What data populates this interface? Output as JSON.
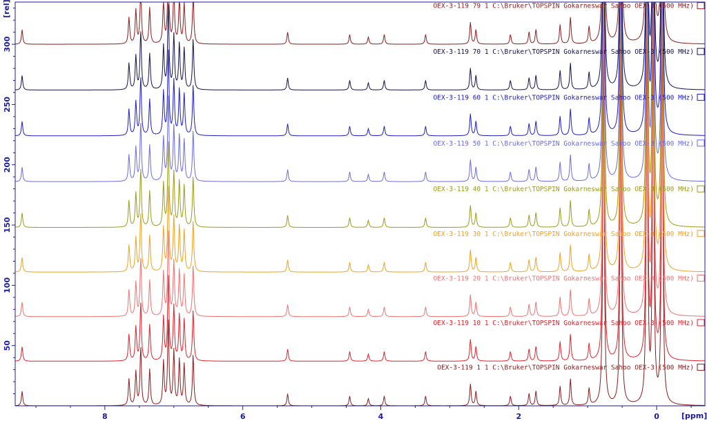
{
  "chart_data": {
    "type": "line",
    "title": "",
    "xlabel": "[ppm]",
    "ylabel": "[rel]",
    "xlim": [
      9.3,
      -0.7
    ],
    "ylim": [
      0,
      335
    ],
    "x_ticks": [
      8,
      6,
      4,
      2,
      0
    ],
    "y_ticks": [
      50,
      100,
      150,
      200,
      250,
      300
    ],
    "grid": false,
    "legend": "right, one label per spectrum",
    "series": [
      {
        "name": "OEX-3-119  1  1  C:\\Bruker\\TOPSPIN  Gokarneswar Sahoo OEX-3  (500 MHz)",
        "offset": 0,
        "color": "#8b1a1a"
      },
      {
        "name": "OEX-3-119  10  1  C:\\Bruker\\TOPSPIN  Gokarneswar Sahoo OEX-3  (500 MHz)",
        "offset": 37,
        "color": "#e0202a"
      },
      {
        "name": "OEX-3-119  20  1  C:\\Bruker\\TOPSPIN  Gokarneswar Sahoo OEX-3  (500 MHz)",
        "offset": 74,
        "color": "#f07070"
      },
      {
        "name": "OEX-3-119  30  1  C:\\Bruker\\TOPSPIN  Gokarneswar Sahoo OEX-3  (500 MHz)",
        "offset": 111,
        "color": "#f0a020"
      },
      {
        "name": "OEX-3-119  40  1  C:\\Bruker\\TOPSPIN  Gokarneswar Sahoo OEX-3  (500 MHz)",
        "offset": 148,
        "color": "#9a9a1a"
      },
      {
        "name": "OEX-3-119  50  1  C:\\Bruker\\TOPSPIN  Gokarneswar Sahoo OEX-3  (500 MHz)",
        "offset": 186,
        "color": "#6a6ae0"
      },
      {
        "name": "OEX-3-119  60  1  C:\\Bruker\\TOPSPIN  Gokarneswar Sahoo OEX-3  (500 MHz)",
        "offset": 224,
        "color": "#1a1acc"
      },
      {
        "name": "OEX-3-119  70  1  C:\\Bruker\\TOPSPIN  Gokarneswar Sahoo OEX-3  (500 MHz)",
        "offset": 262,
        "color": "#10104a"
      },
      {
        "name": "OEX-3-119  79  1  C:\\Bruker\\TOPSPIN  Gokarneswar Sahoo OEX-3  (500 MHz)",
        "offset": 300,
        "color": "#8b1a1a"
      }
    ],
    "peaks": [
      {
        "ppm": 9.2,
        "height": 12
      },
      {
        "ppm": 7.65,
        "height": 22
      },
      {
        "ppm": 7.55,
        "height": 28
      },
      {
        "ppm": 7.48,
        "height": 48
      },
      {
        "ppm": 7.35,
        "height": 30
      },
      {
        "ppm": 7.15,
        "height": 36
      },
      {
        "ppm": 7.08,
        "height": 70
      },
      {
        "ppm": 7.0,
        "height": 45
      },
      {
        "ppm": 6.92,
        "height": 38
      },
      {
        "ppm": 6.85,
        "height": 34
      },
      {
        "ppm": 6.72,
        "height": 42
      },
      {
        "ppm": 5.35,
        "height": 10
      },
      {
        "ppm": 4.45,
        "height": 8
      },
      {
        "ppm": 4.18,
        "height": 6
      },
      {
        "ppm": 3.95,
        "height": 8
      },
      {
        "ppm": 3.35,
        "height": 8
      },
      {
        "ppm": 2.7,
        "height": 18
      },
      {
        "ppm": 2.62,
        "height": 12
      },
      {
        "ppm": 2.12,
        "height": 8
      },
      {
        "ppm": 1.85,
        "height": 10
      },
      {
        "ppm": 1.75,
        "height": 12
      },
      {
        "ppm": 1.4,
        "height": 16
      },
      {
        "ppm": 1.25,
        "height": 22
      },
      {
        "ppm": 0.98,
        "height": 14
      },
      {
        "ppm": 0.77,
        "height": 310
      },
      {
        "ppm": 0.52,
        "height": 300
      },
      {
        "ppm": 0.14,
        "height": 320
      },
      {
        "ppm": 0.05,
        "height": 330
      },
      {
        "ppm": -0.08,
        "height": 325
      }
    ]
  }
}
